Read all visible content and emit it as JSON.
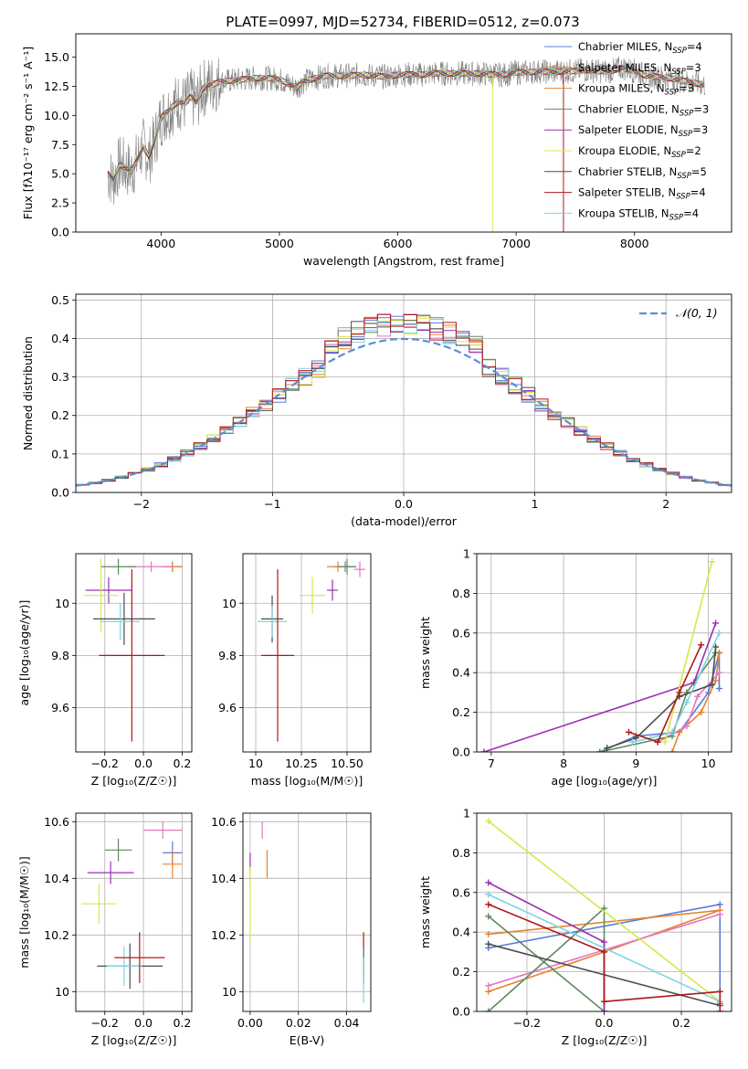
{
  "figure": {
    "title": "PLATE=0997, MJD=52734, FIBERID=0512, z=0.073"
  },
  "chart_data": [
    {
      "id": "spectrum",
      "type": "line",
      "xlabel": "wavelength [Angstrom, rest frame]",
      "ylabel": "Flux [fλ10⁻¹⁷ erg cm⁻² s⁻¹ A⁻¹]",
      "xlim": [
        3280,
        8820
      ],
      "ylim": [
        0,
        17
      ],
      "xticks": [
        4000,
        5000,
        6000,
        7000,
        8000
      ],
      "yticks": [
        0.0,
        2.5,
        5.0,
        7.5,
        10.0,
        12.5,
        15.0
      ],
      "legend_position": "top-right",
      "series": [
        {
          "name": "Chabrier MILES, N",
          "sub": "SSP",
          "suffix": "=4",
          "color": "#5a7bd6"
        },
        {
          "name": "Salpeter MILES, N",
          "sub": "SSP",
          "suffix": "=3",
          "color": "#e8822f"
        },
        {
          "name": "Kroupa MILES, N",
          "sub": "SSP",
          "suffix": "=3",
          "color": "#e8822f"
        },
        {
          "name": "Chabrier ELODIE, N",
          "sub": "SSP",
          "suffix": "=3",
          "color": "#5f8a5f"
        },
        {
          "name": "Salpeter ELODIE, N",
          "sub": "SSP",
          "suffix": "=3",
          "color": "#9b30b0"
        },
        {
          "name": "Kroupa ELODIE, N",
          "sub": "SSP",
          "suffix": "=2",
          "color": "#d6e84a"
        },
        {
          "name": "Chabrier STELIB, N",
          "sub": "SSP",
          "suffix": "=5",
          "color": "#4d4d4d"
        },
        {
          "name": "Salpeter STELIB, N",
          "sub": "SSP",
          "suffix": "=4",
          "color": "#b01818"
        },
        {
          "name": "Kroupa STELIB, N",
          "sub": "SSP",
          "suffix": "=4",
          "color": "#7fd3e0"
        }
      ],
      "data_color": "#808080",
      "continuum_points": {
        "x": [
          3550,
          3600,
          3650,
          3700,
          3750,
          3800,
          3850,
          3900,
          3950,
          4000,
          4050,
          4100,
          4150,
          4200,
          4250,
          4300,
          4350,
          4400,
          4450,
          4500,
          4600,
          4700,
          4800,
          4900,
          5000,
          5100,
          5150,
          5200,
          5300,
          5400,
          5500,
          5600,
          5700,
          5800,
          5900,
          6000,
          6100,
          6200,
          6300,
          6400,
          6500,
          6600,
          6700,
          6800,
          6900,
          7000,
          7100,
          7200,
          7300,
          7400,
          7500,
          7600,
          7700,
          7800,
          7900,
          8000,
          8100,
          8200,
          8300,
          8400,
          8500,
          8600
        ],
        "y": [
          5.0,
          4.5,
          5.8,
          5.5,
          5.2,
          6.2,
          7.3,
          6.5,
          7.9,
          9.8,
          10.3,
          10.8,
          11.2,
          11.0,
          11.6,
          11.1,
          12.3,
          12.6,
          12.7,
          12.9,
          13.0,
          13.1,
          13.2,
          13.2,
          13.1,
          12.6,
          12.4,
          12.9,
          13.2,
          13.4,
          13.4,
          13.4,
          13.5,
          13.4,
          13.3,
          13.5,
          13.5,
          13.5,
          13.6,
          13.6,
          13.6,
          13.6,
          13.6,
          13.5,
          13.5,
          13.7,
          13.7,
          13.8,
          13.7,
          13.8,
          13.8,
          13.9,
          13.8,
          13.8,
          14.1,
          13.8,
          13.4,
          13.3,
          13.2,
          13.0,
          12.8,
          12.6
        ]
      },
      "features": [
        {
          "x": 6800,
          "y_min": 0,
          "series": "Kroupa ELODIE"
        },
        {
          "x": 7400,
          "y_min": 0,
          "series": "Salpeter STELIB"
        }
      ]
    },
    {
      "id": "residuals",
      "type": "histogram",
      "xlabel": "(data-model)/error",
      "ylabel": "Normed distribution",
      "xlim": [
        -2.5,
        2.5
      ],
      "ylim": [
        0,
        0.515
      ],
      "xticks": [
        -2,
        -1,
        0,
        1,
        2
      ],
      "yticks": [
        0.0,
        0.1,
        0.2,
        0.3,
        0.4,
        0.5
      ],
      "legend_position": "top-right",
      "reference_curve": {
        "label": "𝒩(0, 1)",
        "mean": 0,
        "sigma": 1,
        "color": "#5a8fd6",
        "style": "dashed"
      },
      "bin_width": 0.1
    },
    {
      "id": "age-vs-Z",
      "type": "errorbar",
      "xlabel": "Z [log₁₀(Z/Z☉)]",
      "ylabel": "age  [log₁₀(age/yr)]",
      "xlim": [
        -0.35,
        0.25
      ],
      "ylim": [
        9.43,
        10.19
      ],
      "xticks": [
        -0.2,
        0.0,
        0.2
      ],
      "yticks": [
        9.6,
        9.8,
        10.0
      ],
      "points": [
        {
          "color": "#5a7bd6",
          "x": 0.15,
          "xerr": 0.05,
          "y": 10.14,
          "yerr": 0.02
        },
        {
          "color": "#e8822f",
          "x": 0.15,
          "xerr": 0.05,
          "y": 10.14,
          "yerr": 0.02
        },
        {
          "color": "#e377c2",
          "x": 0.04,
          "xerr": 0.12,
          "y": 10.14,
          "yerr": 0.02
        },
        {
          "color": "#5f8a5f",
          "x": -0.13,
          "xerr": 0.09,
          "y": 10.14,
          "yerr": 0.03
        },
        {
          "color": "#9b30b0",
          "x": -0.18,
          "xerr": 0.12,
          "y": 10.05,
          "yerr": 0.05
        },
        {
          "color": "#d6e84a",
          "x": -0.22,
          "xerr": 0.09,
          "y": 10.03,
          "yerr": 0.14
        },
        {
          "color": "#4d4d4d",
          "x": -0.1,
          "xerr": 0.16,
          "y": 9.94,
          "yerr": 0.1
        },
        {
          "color": "#7fd3e0",
          "x": -0.12,
          "xerr": 0.1,
          "y": 9.93,
          "yerr": 0.07
        },
        {
          "color": "#b01818",
          "x": -0.06,
          "xerr": 0.17,
          "y": 9.8,
          "yerr": 0.33
        }
      ]
    },
    {
      "id": "age-vs-mass",
      "type": "errorbar",
      "xlabel": "mass [log₁₀(M/M☉)]",
      "ylabel": "",
      "xlim": [
        9.93,
        10.63
      ],
      "ylim": [
        9.43,
        10.19
      ],
      "xticks": [
        10.0,
        10.25,
        10.5
      ],
      "yticks": [
        9.6,
        9.8,
        10.0
      ],
      "points": [
        {
          "color": "#5a7bd6",
          "x": 10.49,
          "xerr": 0.06,
          "y": 10.14,
          "yerr": 0.02
        },
        {
          "color": "#e8822f",
          "x": 10.45,
          "xerr": 0.06,
          "y": 10.14,
          "yerr": 0.02
        },
        {
          "color": "#e377c2",
          "x": 10.57,
          "xerr": 0.03,
          "y": 10.13,
          "yerr": 0.03
        },
        {
          "color": "#5f8a5f",
          "x": 10.5,
          "xerr": 0.05,
          "y": 10.14,
          "yerr": 0.03
        },
        {
          "color": "#9b30b0",
          "x": 10.42,
          "xerr": 0.03,
          "y": 10.05,
          "yerr": 0.04
        },
        {
          "color": "#d6e84a",
          "x": 10.31,
          "xerr": 0.07,
          "y": 10.03,
          "yerr": 0.07
        },
        {
          "color": "#4d4d4d",
          "x": 10.09,
          "xerr": 0.06,
          "y": 9.94,
          "yerr": 0.09
        },
        {
          "color": "#7fd3e0",
          "x": 10.09,
          "xerr": 0.08,
          "y": 9.93,
          "yerr": 0.06
        },
        {
          "color": "#b01818",
          "x": 10.12,
          "xerr": 0.09,
          "y": 9.8,
          "yerr": 0.33
        }
      ]
    },
    {
      "id": "mass-weight-vs-age",
      "type": "line",
      "xlabel": "age  [log₁₀(age/yr)]",
      "ylabel": "mass weight",
      "xlim": [
        6.8,
        10.32
      ],
      "ylim": [
        0,
        1
      ],
      "xticks": [
        7,
        8,
        9,
        10
      ],
      "yticks": [
        0.0,
        0.2,
        0.4,
        0.6,
        0.8,
        1.0
      ],
      "series": [
        {
          "color": "#5a7bd6",
          "x": [
            8.5,
            9.0,
            9.6,
            10.0,
            10.15,
            10.15
          ],
          "y": [
            0.0,
            0.08,
            0.1,
            0.3,
            0.5,
            0.32
          ]
        },
        {
          "color": "#e8822f",
          "x": [
            9.5,
            9.6,
            9.9,
            10.1,
            10.15
          ],
          "y": [
            0.0,
            0.1,
            0.2,
            0.36,
            0.5
          ]
        },
        {
          "color": "#e377c2",
          "x": [
            9.3,
            9.7,
            9.85,
            10.15
          ],
          "y": [
            0.05,
            0.13,
            0.28,
            0.4
          ]
        },
        {
          "color": "#5f8a5f",
          "x": [
            8.5,
            9.5,
            9.7,
            10.1
          ],
          "y": [
            0.0,
            0.08,
            0.3,
            0.5
          ]
        },
        {
          "color": "#9b30b0",
          "x": [
            6.9,
            9.8,
            10.1
          ],
          "y": [
            0.0,
            0.35,
            0.65
          ]
        },
        {
          "color": "#d6e84a",
          "x": [
            9.4,
            10.05
          ],
          "y": [
            0.05,
            0.96
          ]
        },
        {
          "color": "#4d4d4d",
          "x": [
            8.6,
            9.0,
            9.6,
            10.05,
            10.1
          ],
          "y": [
            0.02,
            0.07,
            0.28,
            0.34,
            0.53
          ]
        },
        {
          "color": "#7fd3e0",
          "x": [
            8.95,
            9.2,
            9.5,
            9.7,
            10.15
          ],
          "y": [
            0.05,
            0.07,
            0.1,
            0.25,
            0.6
          ]
        },
        {
          "color": "#b01818",
          "x": [
            8.9,
            9.3,
            9.6,
            9.9
          ],
          "y": [
            0.1,
            0.05,
            0.3,
            0.54
          ]
        }
      ]
    },
    {
      "id": "mass-vs-Z",
      "type": "errorbar",
      "xlabel": "Z [log₁₀(Z/Z☉)]",
      "ylabel": "mass [log₁₀(M/M☉)]",
      "xlim": [
        -0.35,
        0.25
      ],
      "ylim": [
        9.93,
        10.63
      ],
      "xticks": [
        -0.2,
        0.0,
        0.2
      ],
      "yticks": [
        10.0,
        10.2,
        10.4,
        10.6
      ],
      "points": [
        {
          "color": "#5a7bd6",
          "x": 0.15,
          "xerr": 0.05,
          "y": 10.49,
          "yerr": 0.04
        },
        {
          "color": "#e8822f",
          "x": 0.15,
          "xerr": 0.05,
          "y": 10.45,
          "yerr": 0.05
        },
        {
          "color": "#e377c2",
          "x": 0.1,
          "xerr": 0.1,
          "y": 10.57,
          "yerr": 0.03
        },
        {
          "color": "#5f8a5f",
          "x": -0.13,
          "xerr": 0.07,
          "y": 10.5,
          "yerr": 0.04
        },
        {
          "color": "#9b30b0",
          "x": -0.17,
          "xerr": 0.12,
          "y": 10.42,
          "yerr": 0.04
        },
        {
          "color": "#d6e84a",
          "x": -0.23,
          "xerr": 0.09,
          "y": 10.31,
          "yerr": 0.07
        },
        {
          "color": "#4d4d4d",
          "x": -0.07,
          "xerr": 0.17,
          "y": 10.09,
          "yerr": 0.08
        },
        {
          "color": "#7fd3e0",
          "x": -0.1,
          "xerr": 0.09,
          "y": 10.09,
          "yerr": 0.07
        },
        {
          "color": "#b01818",
          "x": -0.02,
          "xerr": 0.13,
          "y": 10.12,
          "yerr": 0.09
        }
      ]
    },
    {
      "id": "mass-vs-ebv",
      "type": "errorbar",
      "xlabel": "E(B-V)",
      "ylabel": "",
      "xlim": [
        -0.003,
        0.05
      ],
      "ylim": [
        9.93,
        10.63
      ],
      "xticks": [
        0.0,
        0.02,
        0.04
      ],
      "yticks": [
        10.0,
        10.2,
        10.4,
        10.6
      ],
      "points": [
        {
          "color": "#e377c2",
          "x": 0.005,
          "xerr": 0.0,
          "y": 10.57,
          "yerr": 0.03
        },
        {
          "color": "#e8822f",
          "x": 0.007,
          "xerr": 0.0,
          "y": 10.45,
          "yerr": 0.05
        },
        {
          "color": "#9b30b0",
          "x": 0.0,
          "xerr": 0.0,
          "y": 10.44,
          "yerr": 0.05
        },
        {
          "color": "#d6e84a",
          "x": 0.0,
          "xerr": 0.0,
          "y": 10.31,
          "yerr": 0.13
        },
        {
          "color": "#b01818",
          "x": 0.047,
          "xerr": 0.0,
          "y": 10.12,
          "yerr": 0.09
        },
        {
          "color": "#5f8a5f",
          "x": 0.047,
          "xerr": 0.0,
          "y": 10.09,
          "yerr": 0.06
        },
        {
          "color": "#7fd3e0",
          "x": 0.047,
          "xerr": 0.0,
          "y": 10.04,
          "yerr": 0.08
        }
      ]
    },
    {
      "id": "mass-weight-vs-Z",
      "type": "line",
      "xlabel": "Z [log₁₀(Z/Z☉)]",
      "ylabel": "mass weight",
      "xlim": [
        -0.33,
        0.33
      ],
      "ylim": [
        0,
        1
      ],
      "xticks": [
        -0.2,
        0.0,
        0.2
      ],
      "yticks": [
        0.0,
        0.2,
        0.4,
        0.6,
        0.8,
        1.0
      ],
      "series": [
        {
          "color": "#5a7bd6",
          "x": [
            -0.3,
            0.3,
            0.3
          ],
          "y": [
            0.32,
            0.54,
            0.04
          ]
        },
        {
          "color": "#e8822f",
          "x": [
            -0.3,
            0.0,
            0.3,
            -0.3
          ],
          "y": [
            0.1,
            0.3,
            0.51,
            0.39
          ]
        },
        {
          "color": "#e377c2",
          "x": [
            -0.3,
            0.3
          ],
          "y": [
            0.13,
            0.49
          ]
        },
        {
          "color": "#5f8a5f",
          "x": [
            -0.3,
            0.0,
            0.0,
            -0.3
          ],
          "y": [
            0.0,
            0.52,
            0.0,
            0.48
          ]
        },
        {
          "color": "#9b30b0",
          "x": [
            -0.3,
            0.0,
            0.0
          ],
          "y": [
            0.65,
            0.35,
            0.0
          ]
        },
        {
          "color": "#d6e84a",
          "x": [
            -0.3,
            0.3
          ],
          "y": [
            0.96,
            0.05
          ]
        },
        {
          "color": "#4d4d4d",
          "x": [
            -0.3,
            0.3
          ],
          "y": [
            0.34,
            0.03
          ]
        },
        {
          "color": "#7fd3e0",
          "x": [
            -0.3,
            0.3
          ],
          "y": [
            0.59,
            0.05
          ]
        },
        {
          "color": "#b01818",
          "x": [
            -0.3,
            0.0,
            0.0,
            0.3,
            0.3
          ],
          "y": [
            0.54,
            0.3,
            0.05,
            0.1,
            0.0
          ]
        }
      ]
    }
  ]
}
